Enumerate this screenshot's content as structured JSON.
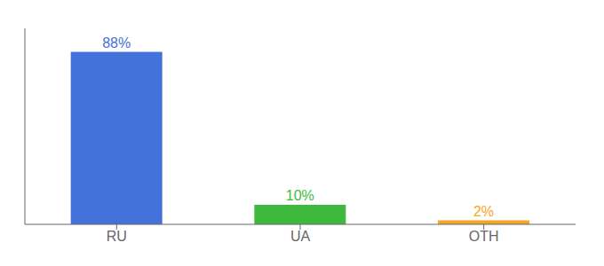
{
  "chart_data": {
    "type": "bar",
    "categories": [
      "RU",
      "UA",
      "OTH"
    ],
    "values": [
      88,
      10,
      2
    ],
    "value_labels": [
      "88%",
      "10%",
      "2%"
    ],
    "colors": [
      "#4472db",
      "#3dba3d",
      "#f5a623"
    ],
    "ylim": [
      0,
      100
    ],
    "tick_labels": "x",
    "data_labels": true,
    "grid": false
  }
}
